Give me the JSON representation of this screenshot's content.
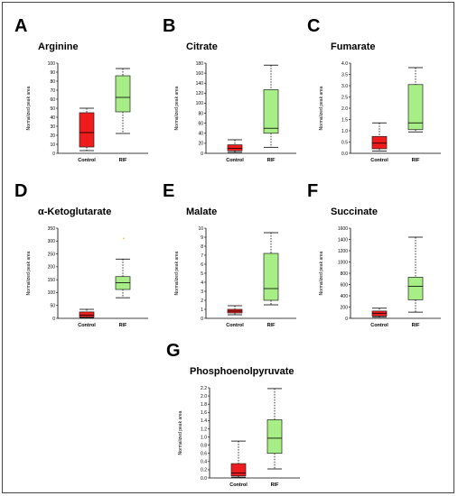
{
  "colors": {
    "control_fill": "#ee1c1c",
    "rif_fill": "#a8ee86",
    "outlier": "#e8c84a",
    "box_stroke": "#222222"
  },
  "chart_data": [
    {
      "type": "boxplot",
      "panel": "A",
      "title": "Arginine",
      "ylabel": "Normalized peak area",
      "ylim": [
        0,
        100
      ],
      "yticks": [
        0,
        10,
        20,
        30,
        40,
        50,
        60,
        70,
        80,
        90,
        100
      ],
      "categories": [
        "Control",
        "RIF"
      ],
      "boxes": [
        {
          "category": "Control",
          "min": 3,
          "q1": 7,
          "median": 23,
          "q3": 45,
          "max": 50
        },
        {
          "category": "RIF",
          "min": 22,
          "q1": 46,
          "median": 62,
          "q3": 86,
          "max": 94
        }
      ],
      "outliers": []
    },
    {
      "type": "boxplot",
      "panel": "B",
      "title": "Citrate",
      "ylabel": "Normalized peak area",
      "ylim": [
        0,
        180
      ],
      "yticks": [
        0,
        20,
        40,
        60,
        80,
        100,
        120,
        140,
        160,
        180
      ],
      "categories": [
        "Control",
        "RIF"
      ],
      "boxes": [
        {
          "category": "Control",
          "min": 2,
          "q1": 5,
          "median": 10,
          "q3": 17,
          "max": 27
        },
        {
          "category": "RIF",
          "min": 12,
          "q1": 40,
          "median": 50,
          "q3": 127,
          "max": 176
        }
      ],
      "outliers": []
    },
    {
      "type": "boxplot",
      "panel": "C",
      "title": "Fumarate",
      "ylabel": "Normalized peak area",
      "ylim": [
        0,
        4.0
      ],
      "yticks": [
        0.0,
        0.5,
        1.0,
        1.5,
        2.0,
        2.5,
        3.0,
        3.5,
        4.0
      ],
      "categories": [
        "Control",
        "RIF"
      ],
      "boxes": [
        {
          "category": "Control",
          "min": 0.1,
          "q1": 0.2,
          "median": 0.45,
          "q3": 0.75,
          "max": 1.35
        },
        {
          "category": "RIF",
          "min": 0.95,
          "q1": 1.05,
          "median": 1.35,
          "q3": 3.05,
          "max": 3.8
        }
      ],
      "outliers": []
    },
    {
      "type": "boxplot",
      "panel": "D",
      "title": "α-Ketoglutarate",
      "ylabel": "Normalized peak area",
      "ylim": [
        0,
        350
      ],
      "yticks": [
        0,
        50,
        100,
        150,
        200,
        250,
        300,
        350
      ],
      "categories": [
        "Control",
        "RIF"
      ],
      "boxes": [
        {
          "category": "Control",
          "min": 2,
          "q1": 5,
          "median": 12,
          "q3": 25,
          "max": 35
        },
        {
          "category": "RIF",
          "min": 80,
          "q1": 112,
          "median": 138,
          "q3": 162,
          "max": 230
        }
      ],
      "outliers": [
        {
          "category": "RIF",
          "value": 310
        }
      ]
    },
    {
      "type": "boxplot",
      "panel": "E",
      "title": "Malate",
      "ylabel": "Normalized peak area",
      "ylim": [
        0,
        10
      ],
      "yticks": [
        0,
        1,
        2,
        3,
        4,
        5,
        6,
        7,
        8,
        9,
        10
      ],
      "categories": [
        "Control",
        "RIF"
      ],
      "boxes": [
        {
          "category": "Control",
          "min": 0.4,
          "q1": 0.6,
          "median": 0.8,
          "q3": 1.0,
          "max": 1.4
        },
        {
          "category": "RIF",
          "min": 1.5,
          "q1": 2.0,
          "median": 3.3,
          "q3": 7.2,
          "max": 9.5
        }
      ],
      "outliers": []
    },
    {
      "type": "boxplot",
      "panel": "F",
      "title": "Succinate",
      "ylabel": "Normalized peak area",
      "ylim": [
        0,
        1600
      ],
      "yticks": [
        0,
        200,
        400,
        600,
        800,
        1000,
        1200,
        1400,
        1600
      ],
      "categories": [
        "Control",
        "RIF"
      ],
      "boxes": [
        {
          "category": "Control",
          "min": 20,
          "q1": 40,
          "median": 90,
          "q3": 130,
          "max": 180
        },
        {
          "category": "RIF",
          "min": 110,
          "q1": 330,
          "median": 570,
          "q3": 730,
          "max": 1440
        }
      ],
      "outliers": []
    },
    {
      "type": "boxplot",
      "panel": "G",
      "title": "Phosphoenolpyruvate",
      "ylabel": "Normalized peak area",
      "ylim": [
        0,
        2.2
      ],
      "yticks": [
        0.0,
        0.2,
        0.4,
        0.6,
        0.8,
        1.0,
        1.2,
        1.4,
        1.6,
        1.8,
        2.0,
        2.2
      ],
      "categories": [
        "Control",
        "RIF"
      ],
      "boxes": [
        {
          "category": "Control",
          "min": 0.02,
          "q1": 0.05,
          "median": 0.12,
          "q3": 0.35,
          "max": 0.9
        },
        {
          "category": "RIF",
          "min": 0.22,
          "q1": 0.6,
          "median": 0.97,
          "q3": 1.42,
          "max": 2.18
        }
      ],
      "outliers": []
    }
  ]
}
